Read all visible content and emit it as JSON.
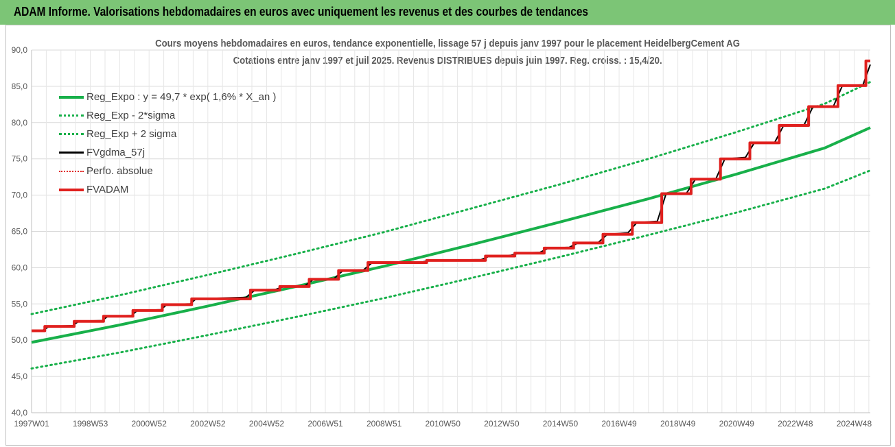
{
  "header": {
    "title": "ADAM Informe. Valorisations hebdomadaires en euros avec uniquement les revenus et des courbes de tendances"
  },
  "chart_data": {
    "type": "line",
    "title": "Cours moyens hebdomadaires en euros, tendance exponentielle, lissage 57 j depuis janv 1997 pour le placement HeidelbergCement AG",
    "subtitle": "Cotations entre janv 1997 et juil 2025. Revenus DISTRIBUES depuis juin 1997. Reg. croiss. : 15,4/20.",
    "xlabel": "",
    "ylabel": "",
    "ylim": [
      40,
      90
    ],
    "yticks": [
      "40,0",
      "45,0",
      "50,0",
      "55,0",
      "60,0",
      "65,0",
      "70,0",
      "75,0",
      "80,0",
      "85,0",
      "90,0"
    ],
    "xlim": [
      1997.0,
      2025.55
    ],
    "xticks": [
      {
        "label": "1997W01",
        "x": 1997.0
      },
      {
        "label": "1998W53",
        "x": 1999.0
      },
      {
        "label": "2000W52",
        "x": 2001.0
      },
      {
        "label": "2002W52",
        "x": 2003.0
      },
      {
        "label": "2004W52",
        "x": 2005.0
      },
      {
        "label": "2006W51",
        "x": 2007.0
      },
      {
        "label": "2008W51",
        "x": 2009.0
      },
      {
        "label": "2010W50",
        "x": 2011.0
      },
      {
        "label": "2012W50",
        "x": 2013.0
      },
      {
        "label": "2014W50",
        "x": 2015.0
      },
      {
        "label": "2016W49",
        "x": 2017.0
      },
      {
        "label": "2018W49",
        "x": 2019.0
      },
      {
        "label": "2020W49",
        "x": 2021.0
      },
      {
        "label": "2022W48",
        "x": 2023.0
      },
      {
        "label": "2024W48",
        "x": 2025.0
      }
    ],
    "grid": true,
    "legend_position": "top-left",
    "series": [
      {
        "name": "Reg_Expo : y = 49,7 * exp( 1,6% *  X_an )",
        "style": "solid",
        "color": "#18b04a",
        "x": [
          1997.0,
          2000.0,
          2003.0,
          2006.0,
          2009.0,
          2012.0,
          2015.0,
          2018.0,
          2021.0,
          2024.0,
          2025.55
        ],
        "y": [
          49.7,
          52.1,
          54.7,
          57.4,
          60.2,
          63.2,
          66.3,
          69.5,
          72.9,
          76.5,
          79.3
        ]
      },
      {
        "name": "Reg_Exp - 2*sigma",
        "style": "dotted",
        "color": "#18b04a",
        "x": [
          1997.0,
          2000.0,
          2003.0,
          2006.0,
          2009.0,
          2012.0,
          2015.0,
          2018.0,
          2021.0,
          2024.0,
          2025.55
        ],
        "y": [
          46.1,
          48.3,
          50.7,
          53.2,
          55.8,
          58.6,
          61.5,
          64.5,
          67.6,
          70.9,
          73.4
        ]
      },
      {
        "name": "Reg_Exp + 2 sigma",
        "style": "dotted",
        "color": "#18b04a",
        "x": [
          1997.0,
          2000.0,
          2003.0,
          2006.0,
          2009.0,
          2012.0,
          2015.0,
          2018.0,
          2021.0,
          2024.0,
          2025.55
        ],
        "y": [
          53.6,
          56.2,
          59.0,
          61.9,
          64.9,
          68.2,
          71.5,
          75.0,
          78.7,
          82.6,
          85.6
        ]
      },
      {
        "name": "FVgdma_57j",
        "style": "solid-thin",
        "color": "#000000",
        "x": [
          1997.0,
          1997.4,
          1997.6,
          1998.4,
          1998.6,
          1999.4,
          1999.6,
          2000.4,
          2000.6,
          2001.4,
          2001.6,
          2002.4,
          2002.6,
          2004.3,
          2004.6,
          2005.3,
          2005.6,
          2006.3,
          2006.6,
          2007.3,
          2007.6,
          2008.3,
          2008.6,
          2010.3,
          2010.6,
          2012.3,
          2012.6,
          2013.3,
          2013.6,
          2014.3,
          2014.6,
          2015.3,
          2015.6,
          2016.3,
          2016.6,
          2017.3,
          2017.6,
          2018.3,
          2018.6,
          2019.3,
          2019.6,
          2020.3,
          2020.6,
          2021.3,
          2021.6,
          2022.3,
          2022.6,
          2023.3,
          2023.6,
          2024.3,
          2024.6,
          2025.3,
          2025.55
        ],
        "y": [
          51.3,
          51.4,
          51.9,
          52.0,
          52.6,
          52.7,
          53.3,
          53.4,
          54.1,
          54.2,
          54.9,
          55.0,
          55.7,
          55.9,
          56.9,
          57.0,
          57.4,
          57.5,
          58.4,
          58.5,
          59.6,
          59.7,
          60.7,
          60.8,
          61.0,
          61.1,
          61.6,
          61.7,
          62.0,
          62.1,
          62.7,
          62.8,
          63.4,
          63.5,
          64.6,
          64.8,
          66.2,
          66.4,
          70.2,
          70.3,
          72.2,
          72.3,
          75.0,
          75.2,
          77.2,
          77.3,
          79.6,
          79.7,
          82.2,
          82.3,
          85.1,
          85.2,
          88.0
        ]
      },
      {
        "name": "Perfo. absolue",
        "style": "dotted-thin",
        "color": "#e0201e",
        "x": [],
        "y": []
      },
      {
        "name": "FVADAM",
        "style": "step",
        "color": "#e0201e",
        "x": [
          1997.0,
          1997.45,
          1998.45,
          1999.45,
          2000.45,
          2001.45,
          2002.45,
          2004.45,
          2005.45,
          2006.45,
          2007.45,
          2008.45,
          2010.45,
          2012.45,
          2013.45,
          2014.45,
          2015.45,
          2016.45,
          2017.45,
          2018.45,
          2019.45,
          2020.45,
          2021.45,
          2022.45,
          2023.45,
          2024.45,
          2025.4,
          2025.55
        ],
        "y": [
          51.3,
          51.9,
          52.6,
          53.3,
          54.1,
          54.9,
          55.7,
          56.9,
          57.4,
          58.4,
          59.6,
          60.7,
          61.0,
          61.6,
          62.0,
          62.7,
          63.4,
          64.6,
          66.2,
          70.2,
          72.2,
          75.0,
          77.2,
          79.6,
          82.2,
          85.1,
          88.5,
          88.5
        ]
      }
    ]
  }
}
